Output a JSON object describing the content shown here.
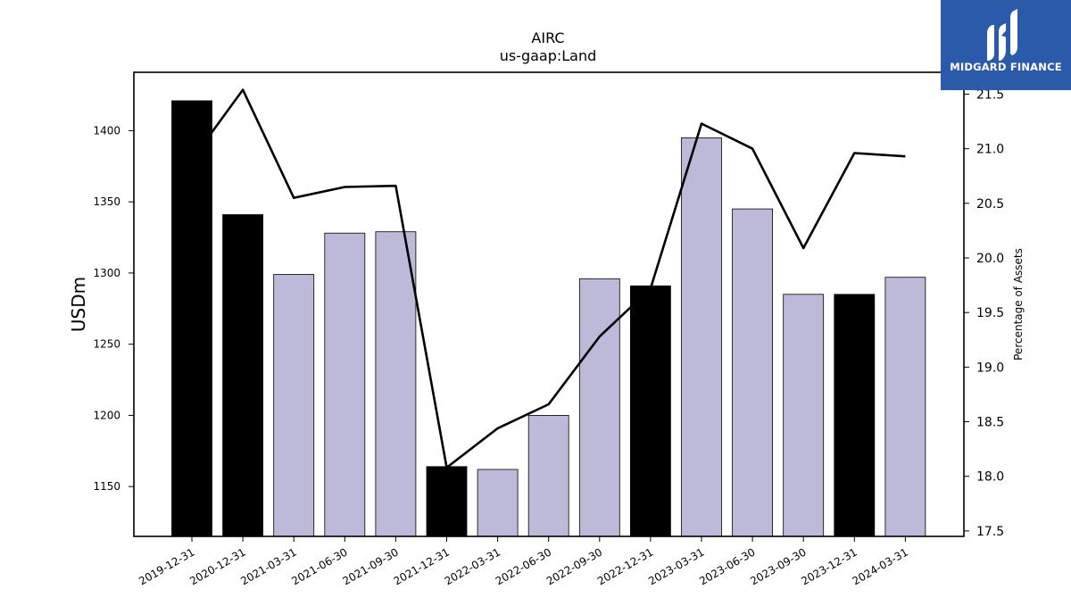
{
  "chart_data": {
    "type": "bar",
    "title": "AIRC",
    "subtitle": "us-gaap:Land",
    "ylabel": "USDm",
    "y2label": "Percentage of Assets",
    "categories": [
      "2019-12-31",
      "2020-12-31",
      "2021-03-31",
      "2021-06-30",
      "2021-09-30",
      "2021-12-31",
      "2022-03-31",
      "2022-06-30",
      "2022-09-30",
      "2022-12-31",
      "2023-03-31",
      "2023-06-30",
      "2023-09-30",
      "2023-12-31",
      "2024-03-31"
    ],
    "bar_values": [
      1421,
      1341,
      1299,
      1328,
      1329,
      1164,
      1162,
      1200,
      1296,
      1291,
      1395,
      1345,
      1285,
      1285,
      1297
    ],
    "bar_annual": [
      true,
      true,
      false,
      false,
      false,
      true,
      false,
      false,
      false,
      true,
      false,
      false,
      false,
      true,
      false
    ],
    "line_values": [
      20.9,
      21.54,
      20.55,
      20.65,
      20.66,
      18.08,
      18.44,
      18.66,
      19.28,
      19.72,
      21.23,
      21.0,
      20.09,
      20.96,
      20.93
    ],
    "ylim": [
      1115,
      1441
    ],
    "y2lim": [
      17.45,
      21.7
    ],
    "yticks": [
      1150,
      1200,
      1250,
      1300,
      1350,
      1400
    ],
    "y2ticks": [
      "17.5",
      "18.0",
      "18.5",
      "19.0",
      "19.5",
      "20.0",
      "20.5",
      "21.0",
      "21.5"
    ],
    "colors": {
      "annual_bar": "#000000",
      "quarterly_bar": "#bdbad9",
      "line": "#000000"
    }
  },
  "logo": {
    "text": "MIDGARD FINANCE"
  }
}
